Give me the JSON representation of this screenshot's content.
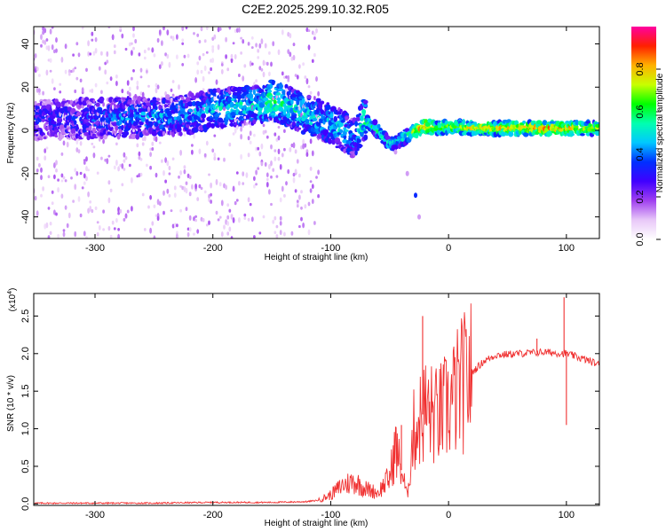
{
  "title": "C2E2.2025.299.10.32.R05",
  "chart_data": [
    {
      "type": "heatmap",
      "xlabel": "Height of straight line (km)",
      "ylabel": "Frequency (Hz)",
      "xlim": [
        -352,
        128
      ],
      "ylim": [
        -50,
        48
      ],
      "xticks": [
        -300,
        -200,
        -100,
        0,
        100
      ],
      "yticks": [
        -40,
        -20,
        0,
        20,
        40
      ],
      "colorbar": {
        "label": "Normalized spectral amplitude",
        "range": [
          0,
          1
        ],
        "ticks": [
          "0.0",
          "0.2",
          "0.4",
          "0.6",
          "0.8"
        ],
        "colors": [
          "#ffffff",
          "#e8c8f8",
          "#a040f0",
          "#4000ff",
          "#0030ff",
          "#00c8ff",
          "#00ffb0",
          "#00ff00",
          "#c8ff00",
          "#ffb000",
          "#ff2000",
          "#ff00a0"
        ]
      },
      "ridge": {
        "x": [
          -350,
          -320,
          -290,
          -260,
          -230,
          -200,
          -180,
          -160,
          -150,
          -140,
          -120,
          -100,
          -90,
          -80,
          -72,
          -60,
          -50,
          -40,
          -30,
          -20,
          -10,
          0,
          20,
          50,
          80,
          100,
          128
        ],
        "y": [
          5,
          5,
          6,
          6,
          7,
          10,
          11,
          12,
          14,
          12,
          7,
          3,
          0,
          -4,
          5,
          0,
          -7,
          -4,
          -1,
          2,
          1,
          2,
          1,
          1,
          1,
          1,
          1
        ],
        "amplitude": [
          0.3,
          0.3,
          0.35,
          0.4,
          0.4,
          0.45,
          0.5,
          0.5,
          0.6,
          0.55,
          0.5,
          0.45,
          0.45,
          0.4,
          0.55,
          0.55,
          0.5,
          0.5,
          0.7,
          0.85,
          0.7,
          0.65,
          0.75,
          0.75,
          0.85,
          0.8,
          0.65
        ]
      },
      "tail": {
        "x": [
          -45,
          -35,
          -28,
          -25
        ],
        "y": [
          -10,
          -20,
          -30,
          -40
        ]
      }
    },
    {
      "type": "line",
      "xlabel": "Height of straight line (km)",
      "ylabel": "SNR (10 * v/v)",
      "yscale_label": "(x10",
      "yscale_exp": "4",
      "xlim": [
        -352,
        128
      ],
      "ylim": [
        -0.02,
        2.8
      ],
      "xticks": [
        -300,
        -200,
        -100,
        0,
        100
      ],
      "yticks": [
        "0.0",
        "0.5",
        "1.0",
        "1.5",
        "2.0",
        "2.5"
      ],
      "series": [
        {
          "color": "#f03030",
          "x": [
            -352,
            -300,
            -250,
            -200,
            -150,
            -120,
            -110,
            -100,
            -90,
            -80,
            -70,
            -60,
            -50,
            -45,
            -40,
            -35,
            -30,
            -20,
            -10,
            0,
            10,
            20,
            30,
            40,
            60,
            80,
            100,
            110,
            120,
            128
          ],
          "y": [
            0.01,
            0.01,
            0.01,
            0.02,
            0.02,
            0.03,
            0.05,
            0.12,
            0.25,
            0.3,
            0.2,
            0.15,
            0.35,
            0.75,
            0.45,
            0.1,
            0.95,
            1.25,
            1.15,
            1.3,
            1.55,
            1.75,
            1.9,
            1.98,
            2.0,
            2.02,
            2.0,
            1.95,
            1.9,
            1.85
          ]
        }
      ],
      "spikes": [
        {
          "x": -22,
          "y": 2.5
        },
        {
          "x": -40,
          "y": 1.05
        },
        {
          "x": 98,
          "y": 2.75
        },
        {
          "x": 100,
          "y": 1.05
        },
        {
          "x": 75,
          "y": 2.2
        }
      ]
    }
  ]
}
